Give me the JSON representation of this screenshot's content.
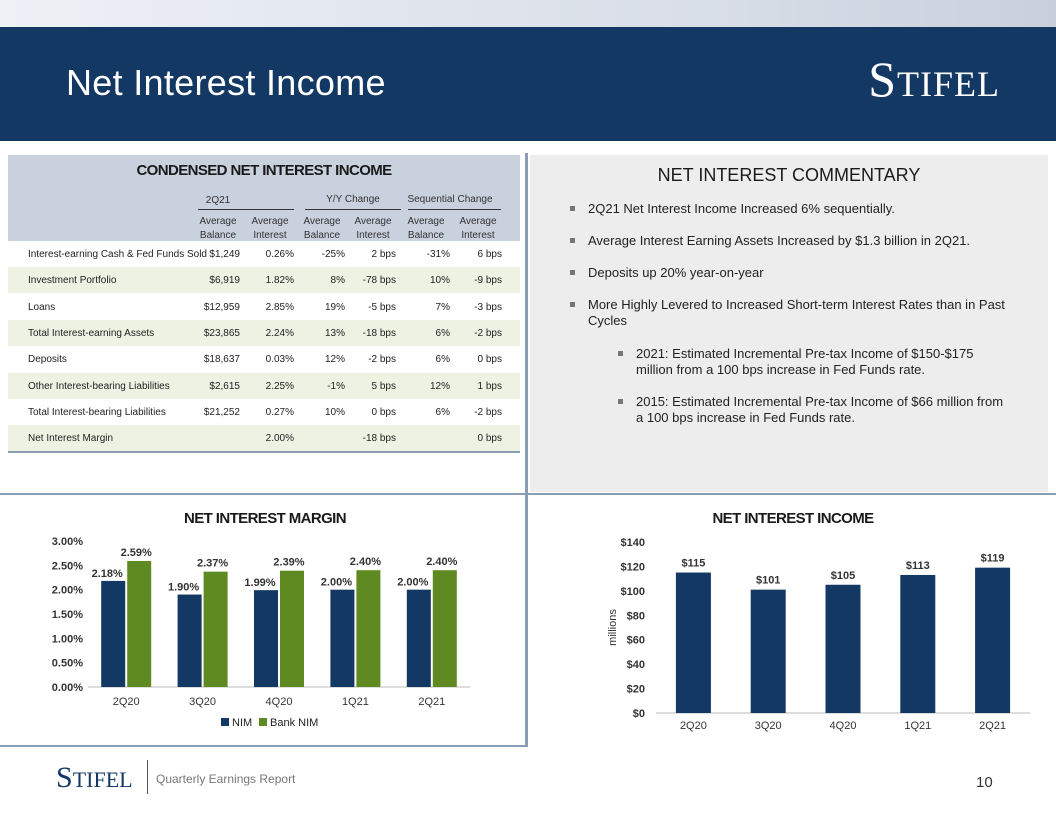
{
  "header": {
    "title": "Net Interest Income",
    "logo": "Stifel"
  },
  "table": {
    "title": "CONDENSED NET INTEREST INCOME",
    "groups": [
      "2Q21",
      "Y/Y Change",
      "Sequential Change"
    ],
    "subheaders": [
      [
        "Average",
        "Balance"
      ],
      [
        "Average",
        "Interest"
      ],
      [
        "Average",
        "Balance"
      ],
      [
        "Average",
        "Interest"
      ],
      [
        "Average",
        "Balance"
      ],
      [
        "Average",
        "Interest"
      ]
    ],
    "rows": [
      {
        "label": "Interest-earning Cash & Fed Funds Sold",
        "values": [
          "$1,249",
          "0.26%",
          "-25%",
          "2 bps",
          "-31%",
          "6 bps"
        ]
      },
      {
        "label": "Investment Portfolio",
        "values": [
          "$6,919",
          "1.82%",
          "8%",
          "-78 bps",
          "10%",
          "-9 bps"
        ]
      },
      {
        "label": "Loans",
        "values": [
          "$12,959",
          "2.85%",
          "19%",
          "-5 bps",
          "7%",
          "-3 bps"
        ]
      },
      {
        "label": "Total Interest-earning Assets",
        "values": [
          "$23,865",
          "2.24%",
          "13%",
          "-18 bps",
          "6%",
          "-2 bps"
        ]
      },
      {
        "label": "Deposits",
        "values": [
          "$18,637",
          "0.03%",
          "12%",
          "-2 bps",
          "6%",
          "0 bps"
        ]
      },
      {
        "label": "Other Interest-bearing Liabilities",
        "values": [
          "$2,615",
          "2.25%",
          "-1%",
          "5 bps",
          "12%",
          "1 bps"
        ]
      },
      {
        "label": "Total Interest-bearing Liabilities",
        "values": [
          "$21,252",
          "0.27%",
          "10%",
          "0 bps",
          "6%",
          "-2 bps"
        ]
      },
      {
        "label": "Net Interest Margin",
        "values": [
          "",
          "2.00%",
          "",
          "-18 bps",
          "",
          "0 bps"
        ]
      }
    ]
  },
  "commentary": {
    "title": "NET INTEREST COMMENTARY",
    "bullets": [
      "2Q21 Net Interest Income Increased 6% sequentially.",
      "Average Interest Earning Assets Increased by $1.3 billion in 2Q21.",
      "Deposits up 20% year-on-year",
      "More Highly Levered to Increased Short-term Interest Rates than in Past Cycles"
    ],
    "subbullets": [
      "2021:  Estimated Incremental Pre-tax Income of $150-$175 million from a 100 bps increase in Fed Funds rate.",
      "2015:  Estimated Incremental Pre-tax Income of $66 million from  a 100 bps increase in Fed Funds rate."
    ]
  },
  "chart_data": [
    {
      "type": "bar",
      "title": "NET INTEREST MARGIN",
      "categories": [
        "2Q20",
        "3Q20",
        "4Q20",
        "1Q21",
        "2Q21"
      ],
      "series": [
        {
          "name": "NIM",
          "values": [
            2.18,
            1.9,
            1.99,
            2.0,
            2.0
          ],
          "labels": [
            "2.18%",
            "1.90%",
            "1.99%",
            "2.00%",
            "2.00%"
          ],
          "color": "#133863"
        },
        {
          "name": "Bank NIM",
          "values": [
            2.59,
            2.37,
            2.39,
            2.4,
            2.4
          ],
          "labels": [
            "2.59%",
            "2.37%",
            "2.39%",
            "2.40%",
            "2.40%"
          ],
          "color": "#5f8a22"
        }
      ],
      "ylim": [
        0,
        3
      ],
      "yticks": [
        "0.00%",
        "0.50%",
        "1.00%",
        "1.50%",
        "2.00%",
        "2.50%",
        "3.00%"
      ],
      "legend": "bottom"
    },
    {
      "type": "bar",
      "title": "NET INTEREST INCOME",
      "categories": [
        "2Q20",
        "3Q20",
        "4Q20",
        "1Q21",
        "2Q21"
      ],
      "series": [
        {
          "values": [
            115,
            101,
            105,
            113,
            119
          ],
          "labels": [
            "$115",
            "$101",
            "$105",
            "$113",
            "$119"
          ],
          "color": "#133863"
        }
      ],
      "ylabel": "millions",
      "ylim": [
        0,
        140
      ],
      "yticks": [
        "$0",
        "$20",
        "$40",
        "$60",
        "$80",
        "$100",
        "$120",
        "$140"
      ]
    }
  ],
  "footer": {
    "logo": "Stifel",
    "text": "Quarterly Earnings Report",
    "page": "10"
  }
}
